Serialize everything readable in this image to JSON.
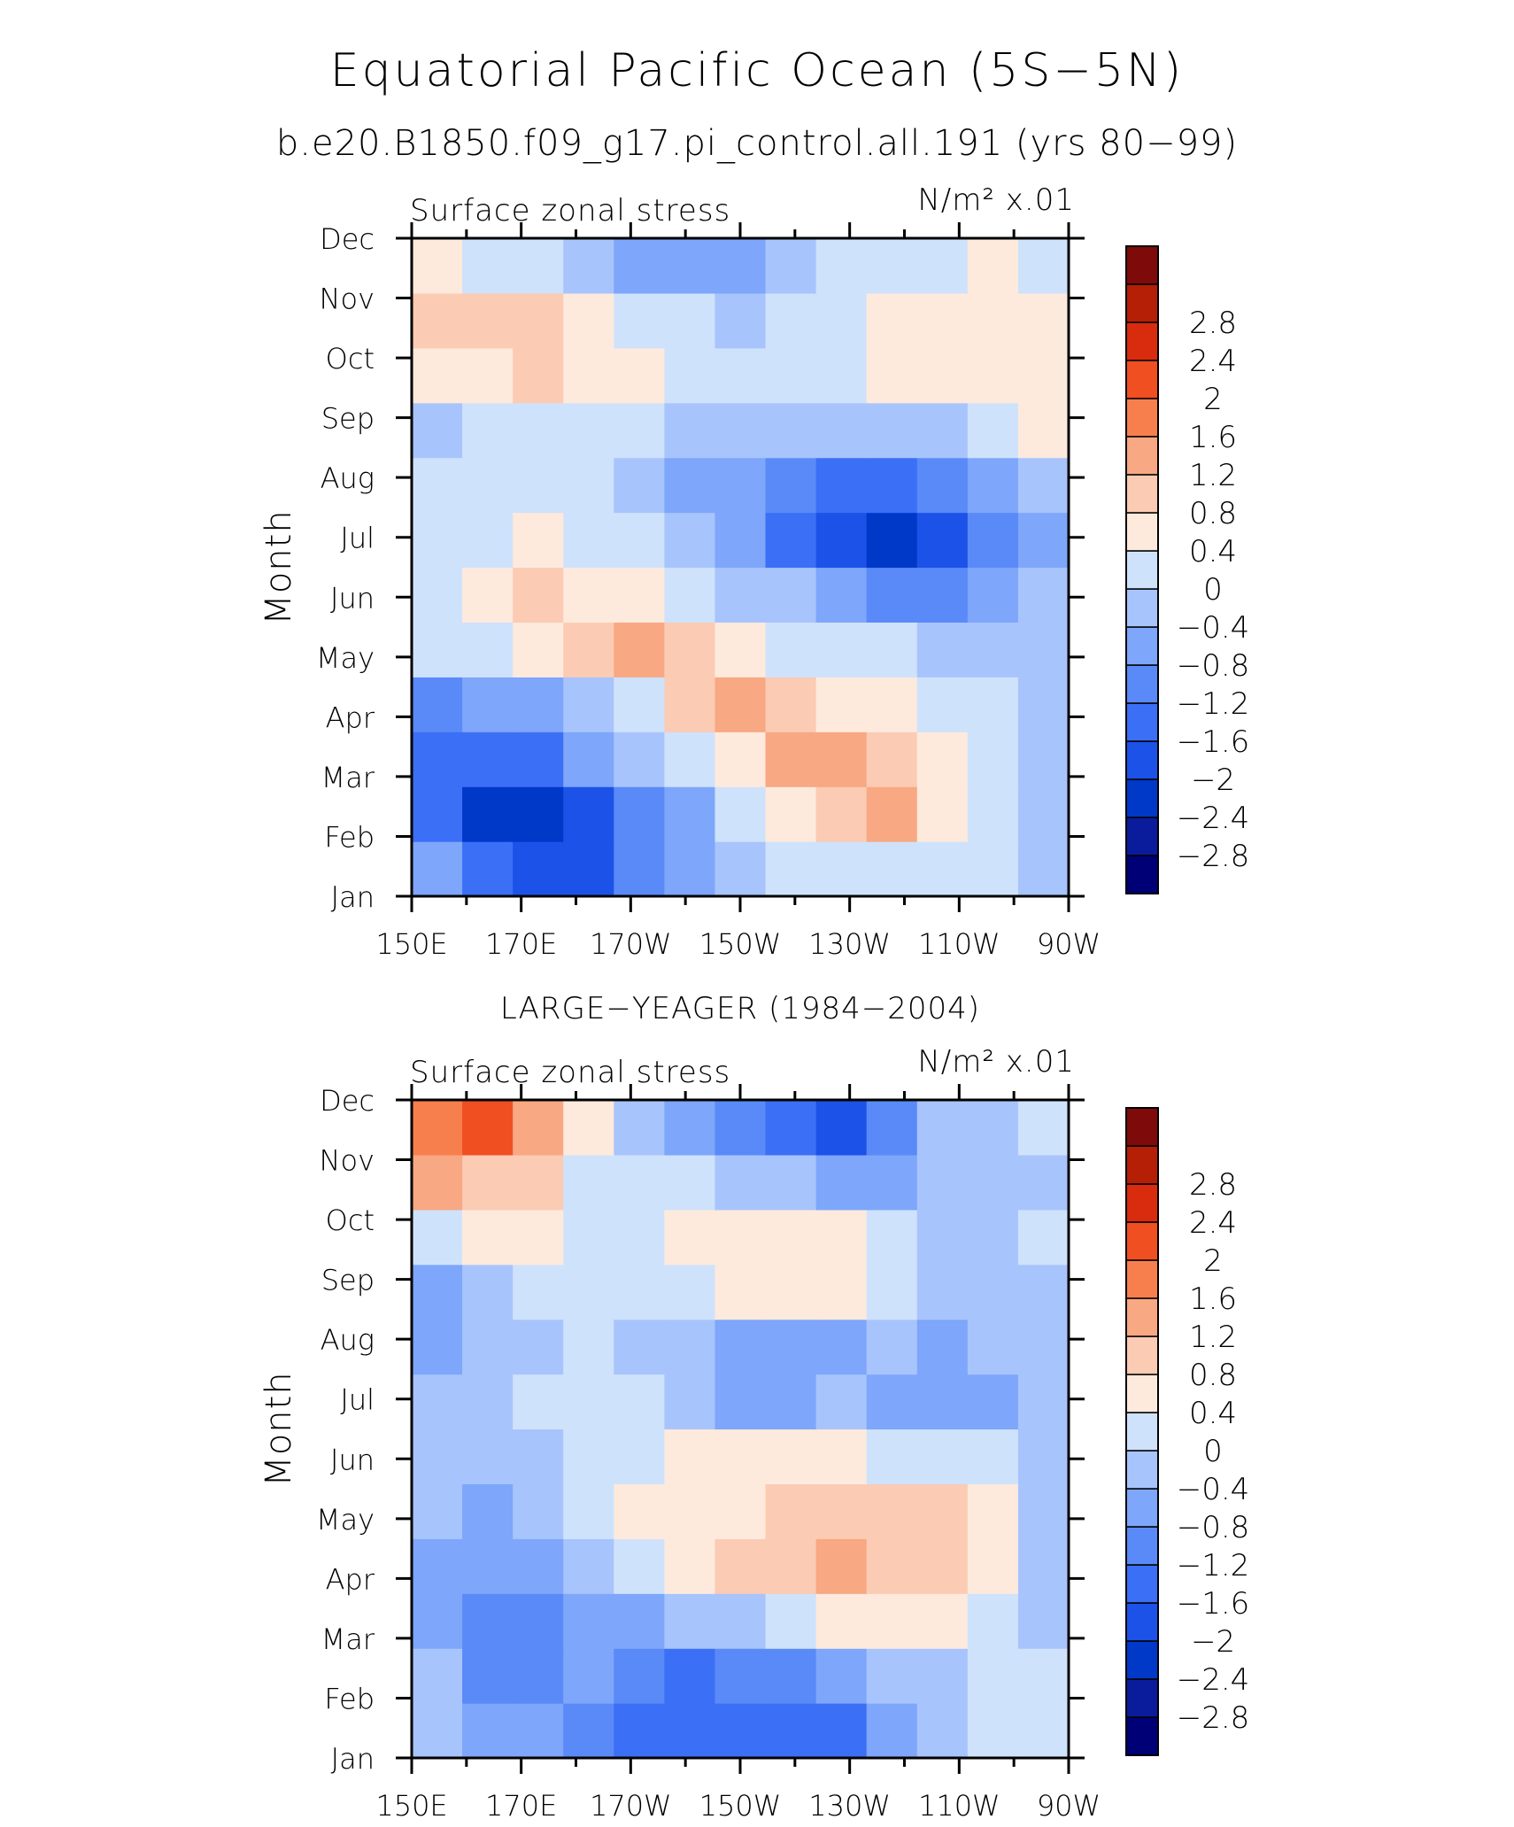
{
  "title": "Equatorial Pacific Ocean (5S−5N)",
  "subtitle": "b.e20.B1850.f09_g17.pi_control.all.191 (yrs 80−99)",
  "colors": {
    "levels": [
      "#000076",
      "#0a1c9c",
      "#0038c8",
      "#1c52e8",
      "#3b6ff5",
      "#5a8af8",
      "#7ea6fa",
      "#a8c4fc",
      "#cfe2fb",
      "#fdeadd",
      "#fbcbb4",
      "#f8a882",
      "#f77f4e",
      "#f04f22",
      "#d92c0e",
      "#b41f05",
      "#7e0a0a"
    ]
  },
  "chart_data": [
    {
      "type": "heatmap",
      "panel_title": "",
      "left_label": "Surface zonal stress",
      "units_label": "N/m² x.01",
      "xlabel": "",
      "ylabel": "Month",
      "x": [
        150,
        160,
        170,
        180,
        190,
        200,
        210,
        220,
        230,
        240,
        250,
        260,
        270
      ],
      "x_ticks": [
        "150E",
        "170E",
        "170W",
        "150W",
        "130W",
        "110W",
        "90W"
      ],
      "y_ticks": [
        "Jan",
        "Feb",
        "Mar",
        "Apr",
        "May",
        "Jun",
        "Jul",
        "Aug",
        "Sep",
        "Oct",
        "Nov",
        "Dec"
      ],
      "levels": [
        -2.8,
        -2.4,
        -2,
        -1.6,
        -1.2,
        -0.8,
        -0.4,
        0,
        0.4,
        0.8,
        1.2,
        1.6,
        2,
        2.4,
        2.8
      ],
      "values": [
        [
          -0.6,
          -1.2,
          -1.6,
          -1.9,
          -1.0,
          -0.5,
          -0.1,
          0.2,
          0.4,
          0.4,
          0.3,
          0.1,
          -0.1
        ],
        [
          -1.3,
          -2.1,
          -2.0,
          -1.6,
          -1.0,
          -0.4,
          0.4,
          0.8,
          1.2,
          1.4,
          0.8,
          0.3,
          -0.1
        ],
        [
          -1.3,
          -1.4,
          -1.2,
          -0.7,
          -0.2,
          0.4,
          0.8,
          1.3,
          1.3,
          1.0,
          0.6,
          0.3,
          -0.1
        ],
        [
          -0.8,
          -0.6,
          -0.4,
          -0.1,
          0.4,
          1.0,
          1.3,
          1.0,
          0.8,
          0.6,
          0.3,
          0.1,
          -0.1
        ],
        [
          0.1,
          0.4,
          0.8,
          1.0,
          1.3,
          1.0,
          0.7,
          0.4,
          0.2,
          0.1,
          0.0,
          -0.1,
          -0.1
        ],
        [
          0.3,
          0.7,
          0.9,
          0.8,
          0.5,
          0.2,
          0.0,
          -0.3,
          -0.7,
          -0.9,
          -0.9,
          -0.6,
          -0.2
        ],
        [
          0.2,
          0.4,
          0.5,
          0.4,
          0.1,
          -0.3,
          -0.7,
          -1.2,
          -1.7,
          -2.2,
          -1.8,
          -1.0,
          -0.4
        ],
        [
          0.1,
          0.2,
          0.2,
          0.1,
          -0.1,
          -0.4,
          -0.7,
          -1.1,
          -1.3,
          -1.3,
          -1.0,
          -0.6,
          -0.3
        ],
        [
          -0.1,
          0.2,
          0.3,
          0.3,
          0.1,
          -0.1,
          -0.2,
          -0.3,
          -0.3,
          -0.2,
          0.0,
          0.4,
          0.5
        ],
        [
          0.5,
          0.8,
          0.9,
          0.8,
          0.5,
          0.4,
          0.3,
          0.3,
          0.4,
          0.5,
          0.7,
          0.8,
          0.6
        ],
        [
          1.2,
          1.1,
          1.0,
          0.6,
          0.3,
          0.1,
          0.0,
          0.1,
          0.3,
          0.5,
          0.6,
          0.7,
          0.5
        ],
        [
          0.5,
          0.3,
          0.1,
          -0.2,
          -0.4,
          -0.6,
          -0.5,
          -0.3,
          0.1,
          0.3,
          0.4,
          0.5,
          0.3
        ]
      ]
    },
    {
      "type": "heatmap",
      "panel_title": "LARGE−YEAGER (1984−2004)",
      "left_label": "Surface zonal stress",
      "units_label": "N/m² x.01",
      "xlabel": "",
      "ylabel": "Month",
      "x": [
        150,
        160,
        170,
        180,
        190,
        200,
        210,
        220,
        230,
        240,
        250,
        260,
        270
      ],
      "x_ticks": [
        "150E",
        "170E",
        "170W",
        "150W",
        "130W",
        "110W",
        "90W"
      ],
      "y_ticks": [
        "Jan",
        "Feb",
        "Mar",
        "Apr",
        "May",
        "Jun",
        "Jul",
        "Aug",
        "Sep",
        "Oct",
        "Nov",
        "Dec"
      ],
      "levels": [
        -2.8,
        -2.4,
        -2,
        -1.6,
        -1.2,
        -0.8,
        -0.4,
        0,
        0.4,
        0.8,
        1.2,
        1.6,
        2,
        2.4,
        2.8
      ],
      "values": [
        [
          -0.2,
          -0.5,
          -0.7,
          -0.8,
          -1.2,
          -1.4,
          -1.2,
          -1.4,
          -1.4,
          -0.6,
          -0.2,
          0.1,
          0.2
        ],
        [
          -0.3,
          -0.8,
          -1.0,
          -0.6,
          -1.1,
          -1.2,
          -1.0,
          -1.1,
          -0.7,
          -0.3,
          0.0,
          0.2,
          0.1
        ],
        [
          -0.4,
          -0.9,
          -1.1,
          -0.7,
          -0.4,
          -0.3,
          0.0,
          0.3,
          0.6,
          0.6,
          0.6,
          0.4,
          0.0
        ],
        [
          -0.4,
          -0.6,
          -0.5,
          -0.1,
          0.2,
          0.6,
          0.9,
          1.0,
          1.3,
          1.2,
          0.9,
          0.5,
          -0.1
        ],
        [
          -0.2,
          -0.5,
          -0.3,
          0.1,
          0.5,
          0.8,
          0.8,
          0.9,
          1.0,
          1.2,
          1.0,
          0.5,
          -0.1
        ],
        [
          -0.2,
          -0.3,
          -0.1,
          0.1,
          0.3,
          0.5,
          0.6,
          0.6,
          0.5,
          0.4,
          0.2,
          0.1,
          -0.1
        ],
        [
          -0.2,
          -0.3,
          0.1,
          0.2,
          0.1,
          -0.1,
          -0.5,
          -0.6,
          -0.3,
          -0.6,
          -0.7,
          -0.4,
          -0.1
        ],
        [
          -0.5,
          -0.3,
          0.0,
          0.1,
          0.0,
          -0.2,
          -0.4,
          -0.6,
          -0.4,
          -0.3,
          -0.5,
          -0.3,
          -0.1
        ],
        [
          -0.4,
          -0.3,
          0.1,
          0.2,
          0.2,
          0.4,
          0.5,
          0.7,
          0.6,
          0.3,
          0.0,
          -0.2,
          0.0
        ],
        [
          0.2,
          0.5,
          0.6,
          0.3,
          0.4,
          0.6,
          0.6,
          0.5,
          0.5,
          0.2,
          -0.2,
          -0.2,
          0.2
        ],
        [
          1.3,
          1.2,
          1.0,
          0.4,
          0.2,
          0.1,
          -0.1,
          -0.2,
          -0.4,
          -0.4,
          -0.3,
          -0.2,
          0.0
        ],
        [
          1.8,
          2.2,
          1.3,
          0.6,
          0.0,
          -0.4,
          -0.9,
          -1.3,
          -1.6,
          -0.9,
          -0.3,
          0.0,
          0.1
        ]
      ]
    }
  ]
}
